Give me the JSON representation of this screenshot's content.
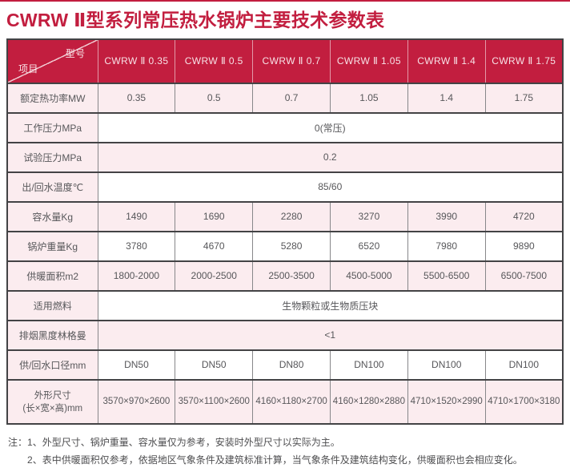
{
  "page": {
    "title": "CWRW Ⅱ型系列常压热水锅炉主要技术参数表"
  },
  "colors": {
    "accent_red": "#c21e3f",
    "row_pink": "#fbecef",
    "row_white": "#ffffff",
    "border_dark": "#434345",
    "body_text": "#57575a"
  },
  "table": {
    "corner": {
      "top_right": "型号",
      "bottom_left": "项目"
    },
    "columns": [
      "CWRW Ⅱ 0.35",
      "CWRW Ⅱ 0.5",
      "CWRW Ⅱ 0.7",
      "CWRW Ⅱ 1.05",
      "CWRW Ⅱ 1.4",
      "CWRW Ⅱ 1.75"
    ],
    "rows": [
      {
        "label": "额定热功率MW",
        "values": [
          "0.35",
          "0.5",
          "0.7",
          "1.05",
          "1.4",
          "1.75"
        ]
      },
      {
        "label": "工作压力MPa",
        "span": "0(常压)"
      },
      {
        "label": "试验压力MPa",
        "span": "0.2"
      },
      {
        "label": "出/回水温度℃",
        "span": "85/60"
      },
      {
        "label": "容水量Kg",
        "values": [
          "1490",
          "1690",
          "2280",
          "3270",
          "3990",
          "4720"
        ]
      },
      {
        "label": "锅炉重量Kg",
        "values": [
          "3780",
          "4670",
          "5280",
          "6520",
          "7980",
          "9890"
        ]
      },
      {
        "label": "供暖面积m2",
        "values": [
          "1800-2000",
          "2000-2500",
          "2500-3500",
          "4500-5000",
          "5500-6500",
          "6500-7500"
        ]
      },
      {
        "label": "适用燃料",
        "span": "生物颗粒或生物质压块"
      },
      {
        "label": "排烟黑度林格曼",
        "span": "<1"
      },
      {
        "label": "供/回水口径mm",
        "values": [
          "DN50",
          "DN50",
          "DN80",
          "DN100",
          "DN100",
          "DN100"
        ]
      },
      {
        "label": "外形尺寸",
        "label_line2": "(长×宽×高)mm",
        "values": [
          "3570×970×2600",
          "3570×1100×2600",
          "4160×1180×2700",
          "4160×1280×2880",
          "4710×1520×2990",
          "4710×1700×3180"
        ]
      }
    ]
  },
  "notes": {
    "prefix": "注：",
    "items": [
      "1、外型尺寸、锅炉重量、容水量仅为参考，安装时外型尺寸以实际为主。",
      "2、表中供暖面积仅参考，依据地区气象条件及建筑标准计算，当气象条件及建筑结构变化，供暖面积也会相应变化。"
    ]
  }
}
